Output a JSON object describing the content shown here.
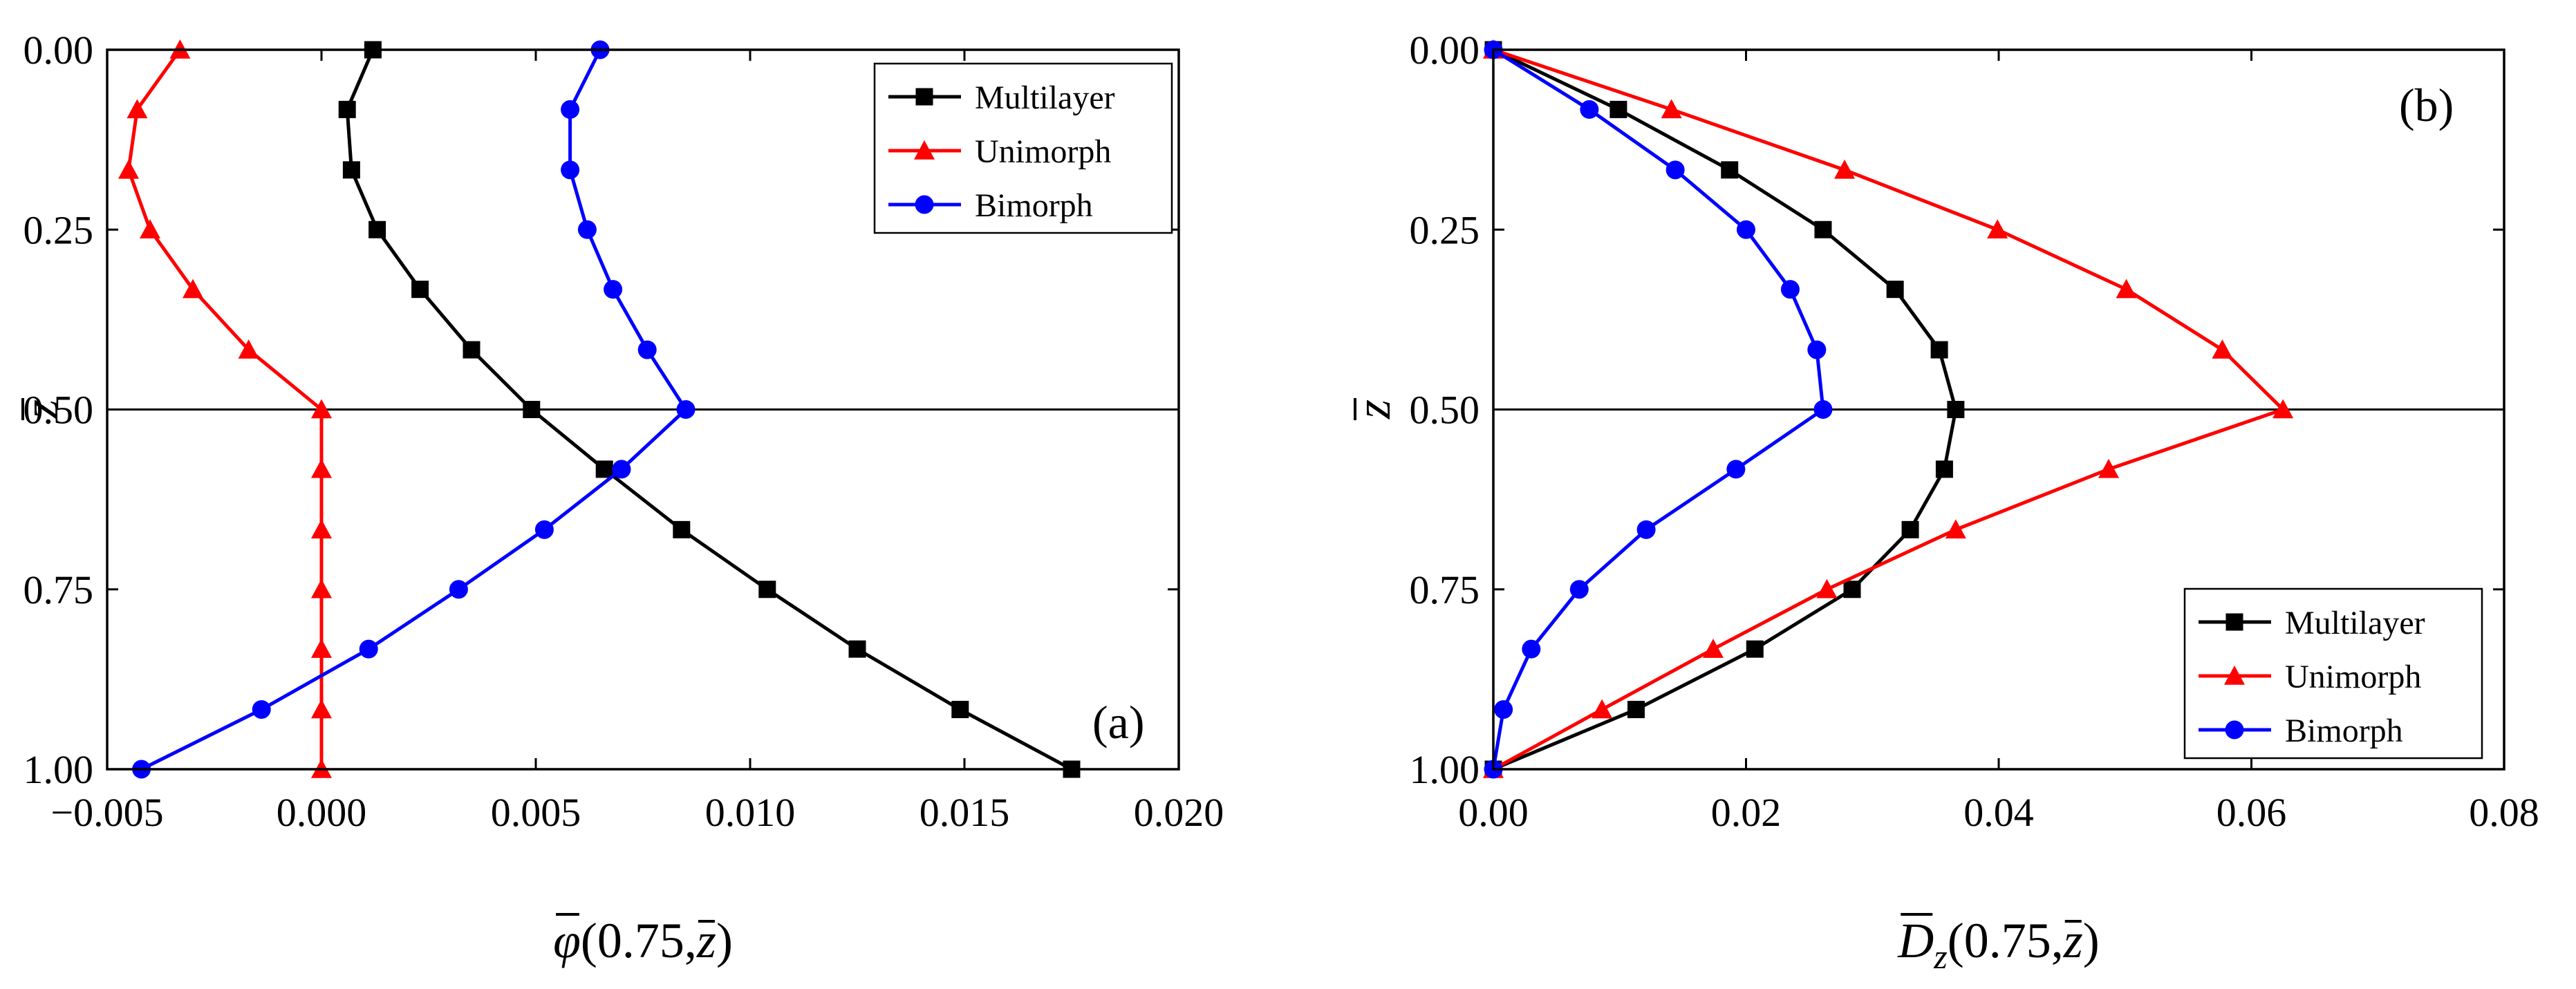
{
  "chart_data": [
    {
      "type": "line",
      "panel_label": "(a)",
      "xlabel": {
        "symbol": "φ",
        "args": "(0.75,",
        "zvar": "z",
        "close": ")"
      },
      "ylabel": "z",
      "xlim": [
        -0.005,
        0.02
      ],
      "ylim": [
        0.0,
        1.0
      ],
      "y_inverted": true,
      "xticks": [
        -0.005,
        0.0,
        0.005,
        0.01,
        0.015,
        0.02
      ],
      "xtick_labels": [
        "−0.005",
        "0.000",
        "0.005",
        "0.010",
        "0.015",
        "0.020"
      ],
      "yticks": [
        0.0,
        0.25,
        0.5,
        0.75,
        1.0
      ],
      "ytick_labels": [
        "0.00",
        "0.25",
        "0.50",
        "0.75",
        "1.00"
      ],
      "hline": 0.5,
      "legend_position": "top-right",
      "series": [
        {
          "name": "Multilayer",
          "color": "#000000",
          "marker": "square",
          "points": [
            [
              0.0012,
              0.0
            ],
            [
              0.0006,
              0.083
            ],
            [
              0.0007,
              0.167
            ],
            [
              0.0013,
              0.25
            ],
            [
              0.0023,
              0.333
            ],
            [
              0.0035,
              0.417
            ],
            [
              0.0049,
              0.5
            ],
            [
              0.0066,
              0.583
            ],
            [
              0.0084,
              0.667
            ],
            [
              0.0104,
              0.75
            ],
            [
              0.0125,
              0.833
            ],
            [
              0.0149,
              0.917
            ],
            [
              0.0175,
              1.0
            ]
          ]
        },
        {
          "name": "Unimorph",
          "color": "#ff0000",
          "marker": "triangle",
          "points": [
            [
              -0.0033,
              0.0
            ],
            [
              -0.0043,
              0.083
            ],
            [
              -0.0045,
              0.167
            ],
            [
              -0.004,
              0.25
            ],
            [
              -0.003,
              0.333
            ],
            [
              -0.0017,
              0.417
            ],
            [
              0.0,
              0.5
            ],
            [
              0.0,
              0.583
            ],
            [
              0.0,
              0.667
            ],
            [
              0.0,
              0.75
            ],
            [
              0.0,
              0.833
            ],
            [
              0.0,
              0.917
            ],
            [
              0.0,
              1.0
            ]
          ]
        },
        {
          "name": "Bimorph",
          "color": "#0000ff",
          "marker": "circle",
          "points": [
            [
              0.0065,
              0.0
            ],
            [
              0.0058,
              0.083
            ],
            [
              0.0058,
              0.167
            ],
            [
              0.0062,
              0.25
            ],
            [
              0.0068,
              0.333
            ],
            [
              0.0076,
              0.417
            ],
            [
              0.0085,
              0.5
            ],
            [
              0.007,
              0.583
            ],
            [
              0.0052,
              0.667
            ],
            [
              0.0032,
              0.75
            ],
            [
              0.0011,
              0.833
            ],
            [
              -0.0014,
              0.917
            ],
            [
              -0.0042,
              1.0
            ]
          ]
        }
      ]
    },
    {
      "type": "line",
      "panel_label": "(b)",
      "xlabel": {
        "symbol": "D",
        "sub": "z",
        "args": "(0.75,",
        "zvar": "z",
        "close": ")"
      },
      "ylabel": "z",
      "xlim": [
        0.0,
        0.08
      ],
      "ylim": [
        0.0,
        1.0
      ],
      "y_inverted": true,
      "xticks": [
        0.0,
        0.02,
        0.04,
        0.06,
        0.08
      ],
      "xtick_labels": [
        "0.00",
        "0.02",
        "0.04",
        "0.06",
        "0.08"
      ],
      "yticks": [
        0.0,
        0.25,
        0.5,
        0.75,
        1.0
      ],
      "ytick_labels": [
        "0.00",
        "0.25",
        "0.50",
        "0.75",
        "1.00"
      ],
      "hline": 0.5,
      "legend_position": "bottom-right",
      "series": [
        {
          "name": "Multilayer",
          "color": "#000000",
          "marker": "square",
          "points": [
            [
              0.0,
              0.0
            ],
            [
              0.0099,
              0.083
            ],
            [
              0.0187,
              0.167
            ],
            [
              0.0261,
              0.25
            ],
            [
              0.0318,
              0.333
            ],
            [
              0.0353,
              0.417
            ],
            [
              0.0366,
              0.5
            ],
            [
              0.0357,
              0.583
            ],
            [
              0.033,
              0.667
            ],
            [
              0.0284,
              0.75
            ],
            [
              0.0207,
              0.833
            ],
            [
              0.0113,
              0.917
            ],
            [
              0.0,
              1.0
            ]
          ]
        },
        {
          "name": "Unimorph",
          "color": "#ff0000",
          "marker": "triangle",
          "points": [
            [
              0.0,
              0.0
            ],
            [
              0.0141,
              0.083
            ],
            [
              0.0278,
              0.167
            ],
            [
              0.0399,
              0.25
            ],
            [
              0.0501,
              0.333
            ],
            [
              0.0577,
              0.417
            ],
            [
              0.0625,
              0.5
            ],
            [
              0.0487,
              0.583
            ],
            [
              0.0366,
              0.667
            ],
            [
              0.0264,
              0.75
            ],
            [
              0.0174,
              0.833
            ],
            [
              0.0086,
              0.917
            ],
            [
              0.0,
              1.0
            ]
          ]
        },
        {
          "name": "Bimorph",
          "color": "#0000ff",
          "marker": "circle",
          "points": [
            [
              0.0,
              0.0
            ],
            [
              0.0076,
              0.083
            ],
            [
              0.0144,
              0.167
            ],
            [
              0.02,
              0.25
            ],
            [
              0.0235,
              0.333
            ],
            [
              0.0256,
              0.417
            ],
            [
              0.0261,
              0.5
            ],
            [
              0.0192,
              0.583
            ],
            [
              0.0121,
              0.667
            ],
            [
              0.0068,
              0.75
            ],
            [
              0.003,
              0.833
            ],
            [
              0.0008,
              0.917
            ],
            [
              0.0,
              1.0
            ]
          ]
        }
      ]
    }
  ]
}
